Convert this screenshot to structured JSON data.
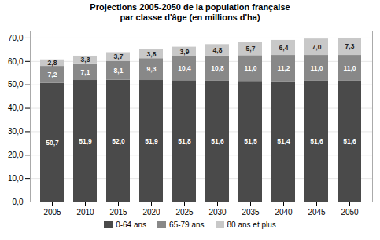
{
  "chart_data": {
    "type": "bar",
    "stacked": true,
    "title": "Projections 2005-2050 de la population française\npar classe d'âge (en millions d'ha)",
    "categories": [
      "2005",
      "2010",
      "2015",
      "2020",
      "2025",
      "2030",
      "2035",
      "2040",
      "2045",
      "2050"
    ],
    "series": [
      {
        "name": "0-64 ans",
        "color": "#4a4a4a",
        "values": [
          50.7,
          51.9,
          52.0,
          51.9,
          51.8,
          51.6,
          51.5,
          51.4,
          51.6,
          51.6
        ],
        "value_labels": [
          "50,7",
          "51,9",
          "52,0",
          "51,9",
          "51,8",
          "51,6",
          "51,5",
          "51,4",
          "51,6",
          "51,6"
        ]
      },
      {
        "name": "65-79 ans",
        "color": "#888888",
        "values": [
          7.2,
          7.1,
          8.1,
          9.3,
          10.4,
          10.8,
          11.0,
          11.2,
          11.0,
          11.0
        ],
        "value_labels": [
          "7,2",
          "7,1",
          "8,1",
          "9,3",
          "10,4",
          "10,8",
          "11,0",
          "11,2",
          "11,0",
          "11,0"
        ]
      },
      {
        "name": "80 ans et plus",
        "color": "#c8c8c8",
        "values": [
          2.8,
          3.3,
          3.7,
          3.8,
          3.9,
          4.8,
          5.7,
          6.4,
          7.0,
          7.3
        ],
        "value_labels": [
          "2,8",
          "3,3",
          "3,7",
          "3,8",
          "3,9",
          "4,8",
          "5,7",
          "6,4",
          "7,0",
          "7,3"
        ]
      }
    ],
    "ylim": [
      0,
      73
    ],
    "yticks": [
      {
        "value": 0.0,
        "label": "0,0"
      },
      {
        "value": 10.0,
        "label": "10,0"
      },
      {
        "value": 20.0,
        "label": "20,0"
      },
      {
        "value": 30.0,
        "label": "30,0"
      },
      {
        "value": 40.0,
        "label": "40,0"
      },
      {
        "value": 50.0,
        "label": "50,0"
      },
      {
        "value": 60.0,
        "label": "60,0"
      },
      {
        "value": 70.0,
        "label": "70,0"
      }
    ],
    "grid": true,
    "legend": "bottom",
    "data_labels": true
  }
}
